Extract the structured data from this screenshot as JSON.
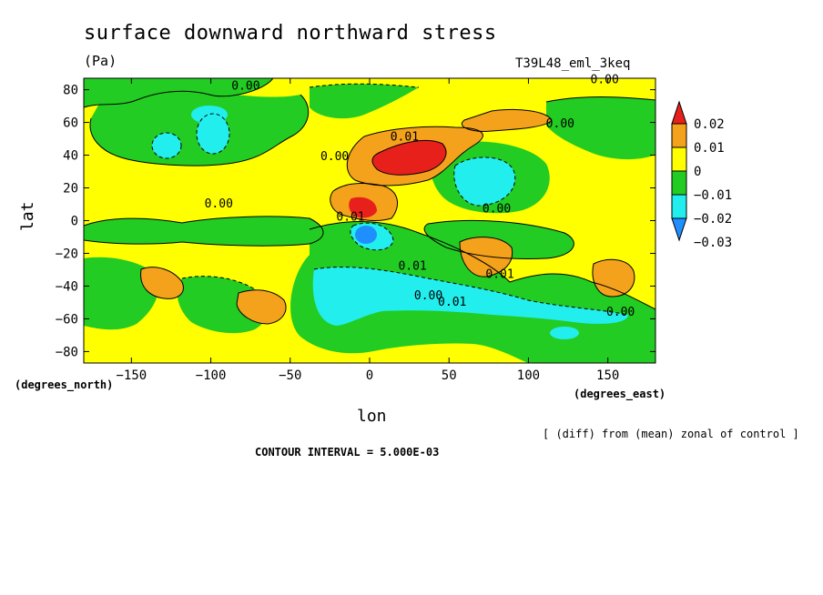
{
  "chart_data": {
    "type": "heatmap",
    "title": "surface downward northward stress",
    "units": "(Pa)",
    "run_id": "T39L48_eml_3keq",
    "xlabel": "lon",
    "ylabel": "lat",
    "x_units_label": "(degrees_east)",
    "y_units_label": "(degrees_north)",
    "xlim": [
      -180,
      180
    ],
    "ylim": [
      -87,
      87
    ],
    "x_ticks": [
      -150,
      -100,
      -50,
      0,
      50,
      100,
      150
    ],
    "y_ticks": [
      80,
      60,
      40,
      20,
      0,
      -20,
      -40,
      -60,
      -80
    ],
    "x_tick_labels": [
      "−150",
      "−100",
      "−50",
      "0",
      "50",
      "100",
      "150"
    ],
    "y_tick_labels": [
      "80",
      "60",
      "40",
      "20",
      "0",
      "−20",
      "−40",
      "−60",
      "−80"
    ],
    "colorbar": {
      "labels": [
        "0.02",
        "0.01",
        "0",
        "−0.01",
        "−0.02",
        "−0.03"
      ],
      "colors": [
        "#e8201c",
        "#f4a11c",
        "#ffff00",
        "#22cc22",
        "#22eeee",
        "#1f8fff"
      ]
    },
    "contour_labels": [
      {
        "text": "0.00",
        "lon": -78,
        "lat": 80
      },
      {
        "text": "0.00",
        "lon": 148,
        "lat": 84
      },
      {
        "text": "0.00",
        "lon": 120,
        "lat": 57
      },
      {
        "text": "0.01",
        "lon": 22,
        "lat": 49
      },
      {
        "text": "0.00",
        "lon": -22,
        "lat": 37
      },
      {
        "text": "0.00",
        "lon": -95,
        "lat": 8
      },
      {
        "text": "0.00",
        "lon": 80,
        "lat": 5
      },
      {
        "text": "0.01",
        "lon": -12,
        "lat": 0
      },
      {
        "text": "0.01",
        "lon": 27,
        "lat": -30
      },
      {
        "text": "0.01",
        "lon": 82,
        "lat": -35
      },
      {
        "text": "0.00",
        "lon": 37,
        "lat": -48
      },
      {
        "text": "0.01",
        "lon": 52,
        "lat": -52
      },
      {
        "text": "0.00",
        "lon": 158,
        "lat": -58
      }
    ],
    "note": "[ (diff) from (mean) zonal of control ]",
    "contour_interval": "CONTOUR INTERVAL = 5.000E-03"
  }
}
